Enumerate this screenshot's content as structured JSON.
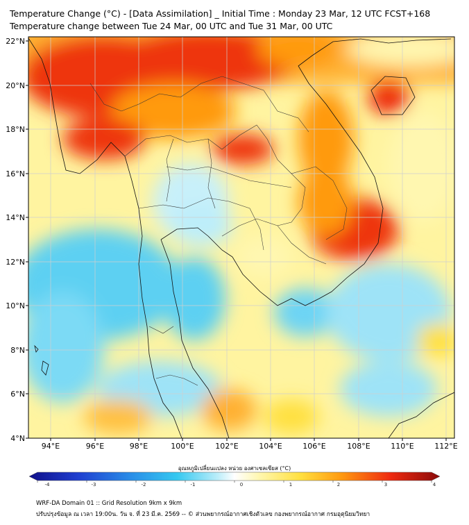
{
  "header": {
    "title_line1": "Temperature Change (°C) - [Data Assimilation] _ Initial Time : Monday 23 Mar, 12 UTC FCST+168",
    "title_line2": "Temperature change between Tue 24 Mar, 00 UTC and Tue 31 Mar, 00 UTC"
  },
  "map": {
    "lat_labels": [
      "22°N",
      "20°N",
      "18°N",
      "16°N",
      "14°N",
      "12°N",
      "10°N",
      "8°N",
      "6°N",
      "4°N"
    ],
    "lon_labels": [
      "94°E",
      "96°E",
      "98°E",
      "100°E",
      "102°E",
      "104°E",
      "106°E",
      "108°E",
      "110°E",
      "112°E"
    ]
  },
  "colorbar": {
    "title": "อุณหภูมิเปลี่ยนแปลง หน่วย องศาเซลเซียส (°C)",
    "tick_labels": [
      "-4",
      "-3",
      "-2",
      "-1",
      "0",
      "1",
      "2",
      "3",
      "4"
    ],
    "colors": {
      "dark_blue": "#1a1aa8",
      "blue": "#1f6fe0",
      "cyan": "#35c8f0",
      "light_cyan": "#bdeefa",
      "white": "#ffffff",
      "light_yellow": "#fff7b0",
      "yellow": "#ffe040",
      "orange": "#ff9a10",
      "red": "#ee2a10",
      "dark_red": "#8a0a0a"
    }
  },
  "footer": {
    "line1": "WRF-DA Domain 01 :: Grid Resolution 9km x 9km",
    "line2": "ปรับปรุงข้อมูล ณ เวลา 19:00น. วัน จ. ที่ 23 มี.ค. 2569 -- © ส่วนพยากรณ์อากาศเชิงตัวเลข กองพยากรณ์อากาศ กรมอุตุนิยมวิทยา"
  }
}
